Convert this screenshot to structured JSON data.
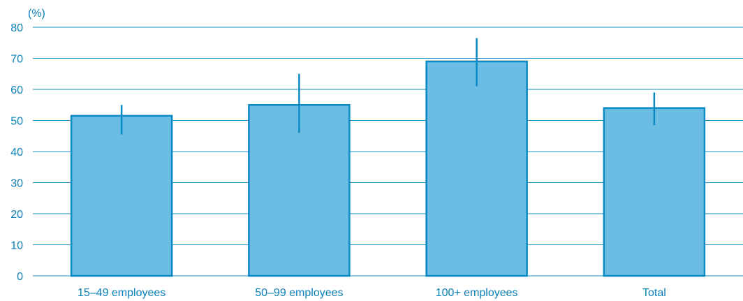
{
  "colors": {
    "text": "#0a7fb8",
    "grid": "#1a8fc4",
    "bar_fill": "#6bbde4",
    "bar_stroke": "#0a8ac4",
    "error_bar": "#0a8ac4"
  },
  "chart_data": {
    "type": "bar",
    "title": "",
    "xlabel": "",
    "ylabel": "",
    "y_unit_label": "(%)",
    "ylim": [
      0,
      80
    ],
    "yticks": [
      0,
      10,
      20,
      30,
      40,
      50,
      60,
      70,
      80
    ],
    "grid": true,
    "categories": [
      "15–49 employees",
      "50–99 employees",
      "100+ employees",
      "Total"
    ],
    "values": [
      51.5,
      55,
      69,
      54
    ],
    "error_low": [
      45.5,
      46,
      61,
      48.5
    ],
    "error_high": [
      55,
      65,
      76.5,
      59
    ]
  }
}
